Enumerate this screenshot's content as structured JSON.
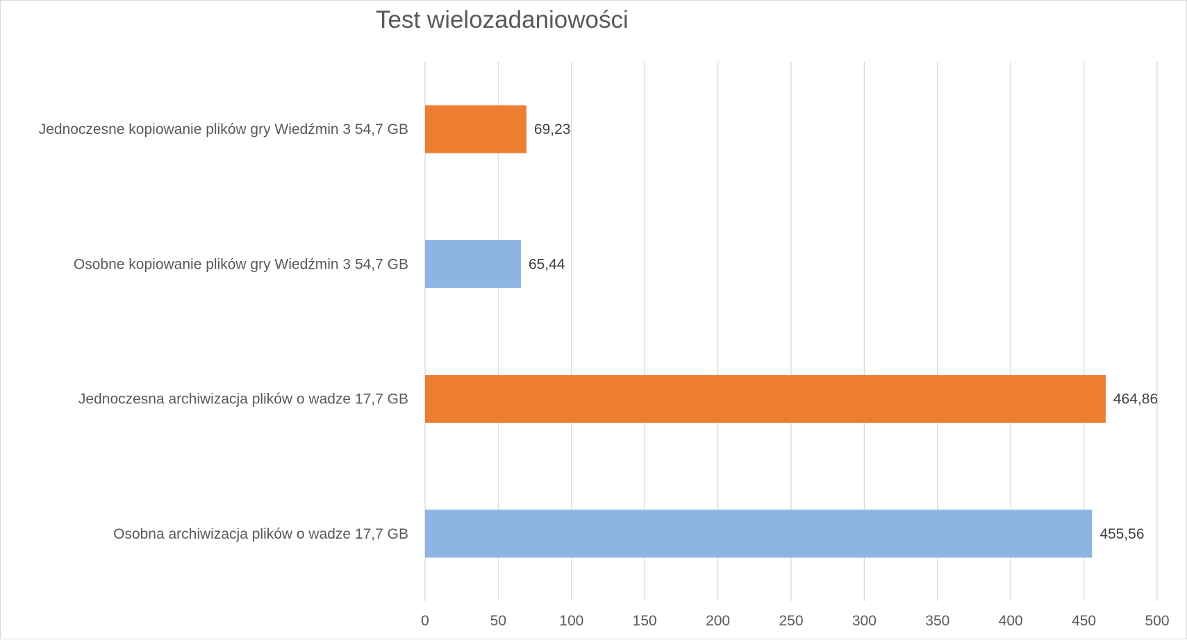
{
  "chart_data": {
    "type": "bar",
    "orientation": "horizontal",
    "title": "Test wielozadaniowości",
    "xlabel": "",
    "ylabel": "",
    "xlim": [
      0,
      500
    ],
    "ticks": [
      0,
      50,
      100,
      150,
      200,
      250,
      300,
      350,
      400,
      450,
      500
    ],
    "grid": true,
    "legend": "none",
    "bars": [
      {
        "category": "Jednoczesne kopiowanie plików gry Wiedźmin 3 54,7 GB",
        "value": 69.23,
        "label": "69,23",
        "color": "#ed7d31"
      },
      {
        "category": "Osobne kopiowanie plików gry Wiedźmin 3 54,7 GB",
        "value": 65.44,
        "label": "65,44",
        "color": "#8eb4e3"
      },
      {
        "category": "Jednoczesna archiwizacja plików o wadze 17,7 GB",
        "value": 464.86,
        "label": "464,86",
        "color": "#ed7d31"
      },
      {
        "category": "Osobna archiwizacja plików o wadze 17,7 GB",
        "value": 455.56,
        "label": "455,56",
        "color": "#8eb4e3"
      }
    ]
  }
}
